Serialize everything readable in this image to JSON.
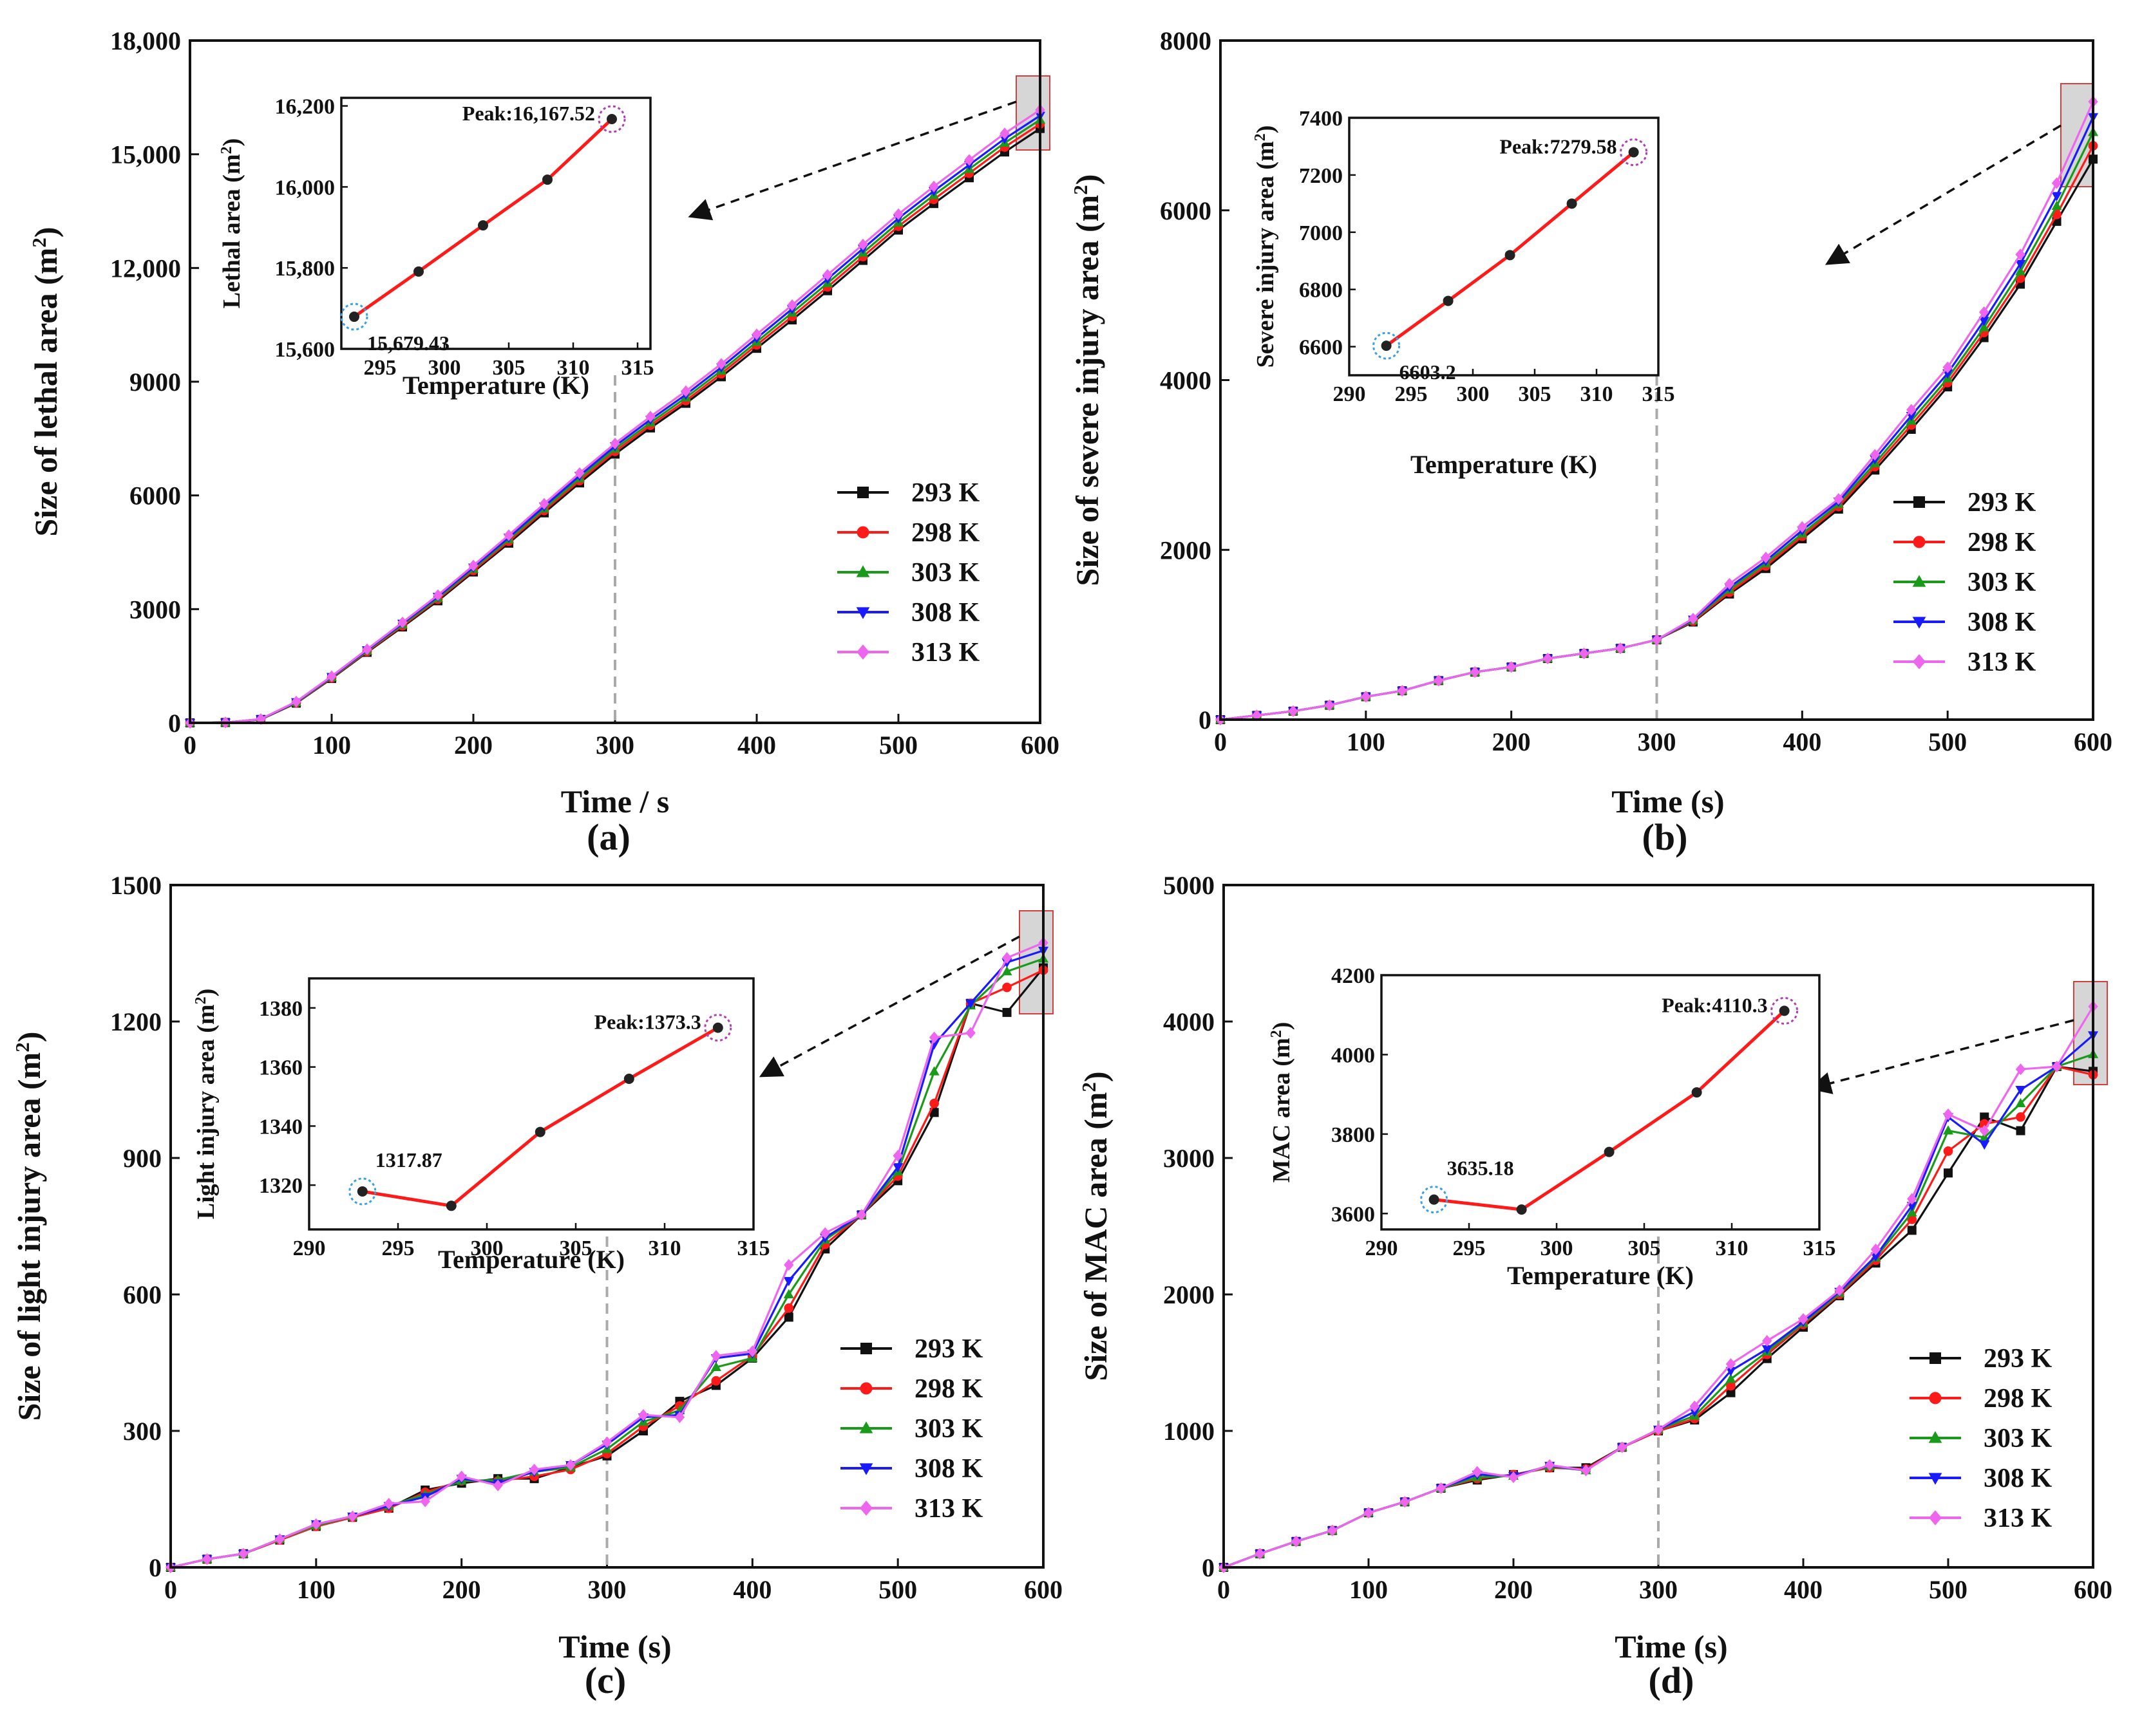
{
  "figure": {
    "series_names": [
      "293 K",
      "298 K",
      "303 K",
      "308 K",
      "313 K"
    ],
    "series_colors": [
      "#111111",
      "#ff1a1a",
      "#1a9a1a",
      "#1a1aff",
      "#ee66ee"
    ],
    "series_markers": [
      "square",
      "circle",
      "triangle-up",
      "triangle-down",
      "diamond"
    ],
    "inset_line_color": "#ff1a1a",
    "inset_marker_color": "#222222",
    "guide_line_color": "#aaaaaa",
    "highlight_box_color": "#cccccc"
  },
  "chart_data": [
    {
      "panel": "(a)",
      "type": "line",
      "xlabel": "Time / s",
      "ylabel": "Size of lethal area (m²)",
      "xlim": [
        0,
        600
      ],
      "ylim": [
        0,
        18000
      ],
      "xticks": [
        "0",
        "100",
        "200",
        "300",
        "400",
        "500",
        "600"
      ],
      "yticks": [
        "0",
        "3000",
        "6000",
        "9000",
        "12,000",
        "15,000",
        "18,000"
      ],
      "x": [
        0,
        25,
        50,
        75,
        100,
        125,
        150,
        175,
        200,
        225,
        250,
        275,
        300,
        325,
        350,
        375,
        400,
        425,
        450,
        475,
        500,
        525,
        550,
        575,
        600
      ],
      "series": [
        {
          "name": "293 K",
          "values": [
            0,
            10,
            90,
            520,
            1170,
            1860,
            2530,
            3220,
            3980,
            4740,
            5540,
            6330,
            7090,
            7780,
            8430,
            9130,
            9880,
            10630,
            11400,
            12200,
            13000,
            13700,
            14380,
            15060,
            15680
          ]
        },
        {
          "name": "298 K",
          "values": [
            0,
            10,
            92,
            530,
            1185,
            1880,
            2560,
            3260,
            4020,
            4790,
            5600,
            6390,
            7160,
            7850,
            8500,
            9210,
            9970,
            10720,
            11500,
            12300,
            13100,
            13810,
            14500,
            15190,
            15800
          ]
        },
        {
          "name": "303 K",
          "values": [
            0,
            10,
            95,
            540,
            1200,
            1900,
            2590,
            3290,
            4060,
            4840,
            5650,
            6450,
            7230,
            7920,
            8580,
            9290,
            10050,
            10820,
            11600,
            12400,
            13200,
            13920,
            14610,
            15300,
            15910
          ]
        },
        {
          "name": "308 K",
          "values": [
            0,
            10,
            97,
            550,
            1215,
            1920,
            2620,
            3330,
            4100,
            4890,
            5710,
            6520,
            7300,
            8000,
            8660,
            9380,
            10150,
            10920,
            11710,
            12510,
            13310,
            14030,
            14720,
            15410,
            16020
          ]
        },
        {
          "name": "313 K",
          "values": [
            0,
            10,
            100,
            560,
            1230,
            1940,
            2650,
            3370,
            4150,
            4950,
            5780,
            6590,
            7370,
            8080,
            8750,
            9470,
            10250,
            11020,
            11820,
            12620,
            13420,
            14150,
            14850,
            15550,
            16170
          ]
        }
      ],
      "legend_position": "center-right",
      "guide_x": 300,
      "inset": {
        "xlabel": "Temperature (K)",
        "ylabel": "Lethal area (m²)",
        "xlim": [
          292,
          316
        ],
        "ylim": [
          15600,
          16220
        ],
        "xticks": [
          "295",
          "300",
          "305",
          "310",
          "315"
        ],
        "yticks": [
          "15,600",
          "15,800",
          "16,000",
          "16,200"
        ],
        "x": [
          293,
          298,
          303,
          308,
          313
        ],
        "values": [
          15679.43,
          15791,
          15905,
          16018,
          16167.52
        ],
        "low_label": "15,679.43",
        "peak_label": "Peak:16,167.52"
      }
    },
    {
      "panel": "(b)",
      "type": "line",
      "xlabel": "Time (s)",
      "ylabel": "Size of severe injury area (m²)",
      "xlim": [
        0,
        600
      ],
      "ylim": [
        0,
        8000
      ],
      "xticks": [
        "0",
        "100",
        "200",
        "300",
        "400",
        "500",
        "600"
      ],
      "yticks": [
        "0",
        "2000",
        "4000",
        "6000",
        "8000"
      ],
      "x": [
        0,
        25,
        50,
        75,
        100,
        125,
        150,
        175,
        200,
        225,
        250,
        275,
        300,
        325,
        350,
        375,
        400,
        425,
        450,
        475,
        500,
        525,
        550,
        575,
        600
      ],
      "series": [
        {
          "name": "293 K",
          "values": [
            0,
            50,
            100,
            170,
            270,
            340,
            460,
            560,
            620,
            720,
            780,
            840,
            940,
            1150,
            1480,
            1780,
            2130,
            2480,
            2940,
            3420,
            3920,
            4500,
            5130,
            5870,
            6603
          ]
        },
        {
          "name": "298 K",
          "values": [
            0,
            50,
            100,
            170,
            270,
            340,
            460,
            560,
            620,
            720,
            780,
            840,
            940,
            1160,
            1500,
            1810,
            2160,
            2510,
            2980,
            3470,
            3970,
            4560,
            5200,
            5950,
            6760
          ]
        },
        {
          "name": "303 K",
          "values": [
            0,
            50,
            100,
            170,
            270,
            340,
            460,
            560,
            620,
            720,
            780,
            840,
            940,
            1170,
            1530,
            1840,
            2190,
            2540,
            3020,
            3520,
            4020,
            4620,
            5280,
            6050,
            6920
          ]
        },
        {
          "name": "308 K",
          "values": [
            0,
            50,
            100,
            170,
            270,
            340,
            460,
            560,
            620,
            720,
            780,
            840,
            940,
            1180,
            1560,
            1870,
            2230,
            2570,
            3070,
            3580,
            4080,
            4700,
            5370,
            6170,
            7100
          ]
        },
        {
          "name": "313 K",
          "values": [
            0,
            50,
            100,
            170,
            270,
            340,
            460,
            560,
            620,
            720,
            780,
            840,
            940,
            1190,
            1600,
            1910,
            2270,
            2600,
            3120,
            3650,
            4150,
            4800,
            5480,
            6320,
            7280
          ]
        }
      ],
      "legend_position": "bottom-right",
      "guide_x": 300,
      "inset": {
        "xlabel": "Temperature (K)",
        "ylabel": "Severe injury area (m²)",
        "xlim": [
          290,
          315
        ],
        "ylim": [
          6500,
          7400
        ],
        "xticks": [
          "290",
          "295",
          "300",
          "305",
          "310",
          "315"
        ],
        "yticks": [
          "6600",
          "6800",
          "7000",
          "7200",
          "7400"
        ],
        "x": [
          293,
          298,
          303,
          308,
          313
        ],
        "values": [
          6603.2,
          6760,
          6920,
          7100,
          7279.58
        ],
        "low_label": "6603.2",
        "peak_label": "Peak:7279.58"
      }
    },
    {
      "panel": "(c)",
      "type": "line",
      "xlabel": "Time (s)",
      "ylabel": "Size of light injury area (m²)",
      "xlim": [
        0,
        600
      ],
      "ylim": [
        0,
        1500
      ],
      "xticks": [
        "0",
        "100",
        "200",
        "300",
        "400",
        "500",
        "600"
      ],
      "yticks": [
        "0",
        "300",
        "600",
        "900",
        "1200",
        "1500"
      ],
      "x": [
        0,
        25,
        50,
        75,
        100,
        125,
        150,
        175,
        200,
        225,
        250,
        275,
        300,
        325,
        350,
        375,
        400,
        425,
        450,
        475,
        500,
        525,
        550,
        575,
        600
      ],
      "series": [
        {
          "name": "293 K",
          "values": [
            0,
            18,
            30,
            60,
            90,
            110,
            130,
            170,
            185,
            195,
            195,
            220,
            245,
            300,
            365,
            400,
            460,
            550,
            700,
            775,
            850,
            1000,
            1240,
            1220,
            1318
          ]
        },
        {
          "name": "298 K",
          "values": [
            0,
            18,
            30,
            60,
            90,
            110,
            130,
            165,
            190,
            190,
            200,
            215,
            250,
            310,
            355,
            410,
            465,
            570,
            710,
            775,
            860,
            1020,
            1240,
            1275,
            1313
          ]
        },
        {
          "name": "303 K",
          "values": [
            0,
            18,
            30,
            62,
            92,
            112,
            135,
            160,
            190,
            192,
            210,
            220,
            260,
            320,
            345,
            440,
            460,
            600,
            720,
            775,
            870,
            1090,
            1235,
            1310,
            1338
          ]
        },
        {
          "name": "308 K",
          "values": [
            0,
            18,
            30,
            62,
            95,
            112,
            135,
            155,
            195,
            185,
            210,
            225,
            270,
            330,
            335,
            460,
            470,
            630,
            725,
            775,
            880,
            1150,
            1240,
            1330,
            1356
          ]
        },
        {
          "name": "313 K",
          "values": [
            0,
            18,
            30,
            62,
            95,
            112,
            140,
            145,
            200,
            180,
            215,
            225,
            275,
            335,
            330,
            465,
            475,
            665,
            735,
            775,
            905,
            1165,
            1175,
            1340,
            1373
          ]
        }
      ],
      "legend_position": "bottom-right",
      "guide_x": 300,
      "inset": {
        "xlabel": "Temperature (K)",
        "ylabel": "Light injury area (m²)",
        "xlim": [
          290,
          315
        ],
        "ylim": [
          1305,
          1390
        ],
        "xticks": [
          "290",
          "295",
          "300",
          "305",
          "310",
          "315"
        ],
        "yticks": [
          "1320",
          "1340",
          "1360",
          "1380"
        ],
        "x": [
          293,
          298,
          303,
          308,
          313
        ],
        "values": [
          1317.87,
          1313,
          1338,
          1356,
          1373.3
        ],
        "low_label": "1317.87",
        "peak_label": "Peak:1373.3"
      }
    },
    {
      "panel": "(d)",
      "type": "line",
      "xlabel": "Time (s)",
      "ylabel": "Size of MAC area (m²)",
      "xlim": [
        0,
        600
      ],
      "ylim": [
        0,
        5000
      ],
      "xticks": [
        "0",
        "100",
        "200",
        "300",
        "400",
        "500",
        "600"
      ],
      "yticks": [
        "0",
        "1000",
        "2000",
        "3000",
        "4000",
        "5000"
      ],
      "x": [
        0,
        25,
        50,
        75,
        100,
        125,
        150,
        175,
        200,
        225,
        250,
        275,
        300,
        325,
        350,
        375,
        400,
        425,
        450,
        475,
        500,
        525,
        550,
        575,
        600
      ],
      "series": [
        {
          "name": "293 K",
          "values": [
            0,
            100,
            190,
            270,
            400,
            480,
            580,
            640,
            680,
            730,
            730,
            880,
            1000,
            1080,
            1280,
            1530,
            1760,
            1990,
            2230,
            2470,
            2890,
            3300,
            3200,
            3670,
            3635
          ]
        },
        {
          "name": "298 K",
          "values": [
            0,
            100,
            190,
            270,
            400,
            480,
            580,
            650,
            680,
            730,
            720,
            880,
            1000,
            1090,
            1330,
            1560,
            1780,
            2000,
            2250,
            2550,
            3050,
            3250,
            3300,
            3670,
            3610
          ]
        },
        {
          "name": "303 K",
          "values": [
            0,
            100,
            190,
            270,
            400,
            480,
            580,
            660,
            670,
            740,
            710,
            880,
            1010,
            1110,
            1380,
            1580,
            1790,
            2010,
            2270,
            2600,
            3200,
            3150,
            3400,
            3670,
            3760
          ]
        },
        {
          "name": "308 K",
          "values": [
            0,
            100,
            190,
            270,
            400,
            480,
            580,
            680,
            670,
            745,
            710,
            880,
            1010,
            1140,
            1440,
            1600,
            1800,
            2020,
            2280,
            2650,
            3300,
            3100,
            3500,
            3670,
            3900
          ]
        },
        {
          "name": "313 K",
          "values": [
            0,
            100,
            190,
            270,
            400,
            480,
            580,
            700,
            660,
            750,
            710,
            880,
            1010,
            1180,
            1490,
            1660,
            1820,
            2030,
            2330,
            2700,
            3320,
            3200,
            3650,
            3670,
            4110
          ]
        }
      ],
      "legend_position": "bottom-right",
      "guide_x": 300,
      "inset": {
        "xlabel": "Temperature (K)",
        "ylabel": "MAC area (m²)",
        "xlim": [
          290,
          315
        ],
        "ylim": [
          3560,
          4200
        ],
        "xticks": [
          "290",
          "295",
          "300",
          "305",
          "310",
          "315"
        ],
        "yticks": [
          "3600",
          "3800",
          "4000",
          "4200"
        ],
        "x": [
          293,
          298,
          303,
          308,
          313
        ],
        "values": [
          3635.18,
          3610,
          3755,
          3905,
          4110.3
        ],
        "low_label": "3635.18",
        "peak_label": "Peak:4110.3"
      }
    }
  ]
}
